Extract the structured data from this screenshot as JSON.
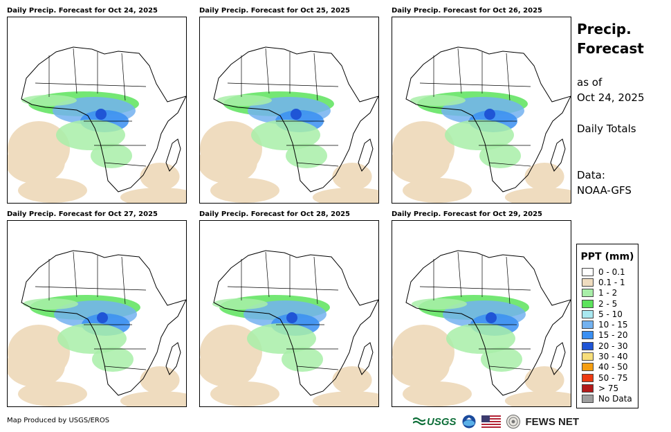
{
  "panels": [
    {
      "title": "Daily Precip. Forecast for Oct 24, 2025"
    },
    {
      "title": "Daily Precip. Forecast for Oct 25, 2025"
    },
    {
      "title": "Daily Precip. Forecast for Oct 26, 2025"
    },
    {
      "title": "Daily Precip. Forecast for Oct 27, 2025"
    },
    {
      "title": "Daily Precip. Forecast for Oct 28, 2025"
    },
    {
      "title": "Daily Precip. Forecast for Oct 29, 2025"
    }
  ],
  "side": {
    "title_line1": "Precip.",
    "title_line2": "Forecast",
    "as_of_label": "as of",
    "as_of_date": "Oct 24, 2025",
    "totals": "Daily Totals",
    "data_label": "Data:",
    "data_source": "NOAA-GFS"
  },
  "legend": {
    "title": "PPT (mm)",
    "items": [
      {
        "label": "0 - 0.1",
        "color": "#ffffff"
      },
      {
        "label": "0.1 - 1",
        "color": "#efdcbf"
      },
      {
        "label": "1 - 2",
        "color": "#a8eea8"
      },
      {
        "label": "2 - 5",
        "color": "#5ce35c"
      },
      {
        "label": "5 - 10",
        "color": "#a9e8f0"
      },
      {
        "label": "10 - 15",
        "color": "#73b2f0"
      },
      {
        "label": "15 - 20",
        "color": "#3a8ff2"
      },
      {
        "label": "20 - 30",
        "color": "#1f55d6"
      },
      {
        "label": "30 - 40",
        "color": "#f7de7a"
      },
      {
        "label": "40 - 50",
        "color": "#f59e12"
      },
      {
        "label": "50 - 75",
        "color": "#ed3a12"
      },
      {
        "label": "> 75",
        "color": "#b31a1a"
      },
      {
        "label": "No Data",
        "color": "#9e9e9e"
      }
    ]
  },
  "footer": {
    "credit": "Map Produced by USGS/EROS",
    "usgs_logo": "USGS",
    "fews_logo": "FEWS NET"
  }
}
